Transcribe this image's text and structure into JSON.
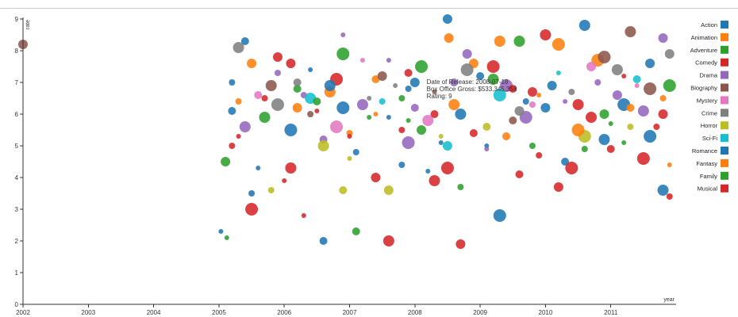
{
  "chart_data": {
    "type": "scatter",
    "title": "",
    "xlabel": "year",
    "ylabel": "rate",
    "xlim": [
      2002,
      2012
    ],
    "ylim": [
      0,
      9
    ],
    "x_ticks": [
      "2002",
      "2003",
      "2004",
      "2005",
      "2006",
      "2007",
      "2008",
      "2009",
      "2010",
      "2011"
    ],
    "y_ticks": [
      "0",
      "1",
      "2",
      "3",
      "4",
      "5",
      "6",
      "7",
      "8",
      "9"
    ],
    "legend_position": "right",
    "tooltip": {
      "lines": [
        "Date of Release: 2008-07-18",
        "Box Office Gross: $533,345,358",
        "Rating: 9"
      ]
    },
    "series": [
      {
        "name": "Action",
        "color": "#1f77b4",
        "points": [
          [
            2005.03,
            2.3
          ],
          [
            2005.5,
            3.5
          ],
          [
            2006.6,
            2.0
          ],
          [
            2008.5,
            9.0
          ],
          [
            2010.6,
            8.8
          ],
          [
            2009.3,
            2.8
          ],
          [
            2008.4,
            5.1
          ],
          [
            2007.1,
            4.8
          ],
          [
            2010.3,
            4.5
          ],
          [
            2011.6,
            7.6
          ],
          [
            2011.8,
            3.6
          ],
          [
            2006.1,
            5.5
          ],
          [
            2007.6,
            5.9
          ],
          [
            2009.7,
            6.4
          ],
          [
            2005.4,
            8.3
          ],
          [
            2008.0,
            7.0
          ],
          [
            2010.9,
            5.2
          ],
          [
            2006.9,
            6.2
          ],
          [
            2009.1,
            5.0
          ],
          [
            2007.9,
            6.8
          ],
          [
            2005.2,
            6.1
          ],
          [
            2010.1,
            6.9
          ],
          [
            2008.7,
            6.0
          ],
          [
            2011.2,
            6.3
          ],
          [
            2006.4,
            7.4
          ]
        ]
      },
      {
        "name": "Animation",
        "color": "#ff7f0e",
        "points": [
          [
            2008.52,
            8.4
          ],
          [
            2009.3,
            8.3
          ],
          [
            2010.2,
            8.2
          ],
          [
            2011.9,
            4.4
          ],
          [
            2005.3,
            6.4
          ],
          [
            2007.4,
            7.1
          ],
          [
            2008.9,
            7.6
          ],
          [
            2006.7,
            6.7
          ],
          [
            2010.8,
            7.7
          ],
          [
            2009.9,
            6.6
          ],
          [
            2007.0,
            5.4
          ],
          [
            2011.3,
            6.2
          ]
        ]
      },
      {
        "name": "Adventure",
        "color": "#2ca02c",
        "points": [
          [
            2005.12,
            2.1
          ],
          [
            2008.7,
            3.7
          ],
          [
            2007.1,
            2.3
          ],
          [
            2005.1,
            4.5
          ],
          [
            2009.6,
            8.3
          ],
          [
            2011.9,
            6.9
          ],
          [
            2007.3,
            5.9
          ],
          [
            2010.6,
            4.9
          ],
          [
            2006.2,
            6.8
          ],
          [
            2008.1,
            5.5
          ],
          [
            2009.2,
            7.1
          ],
          [
            2006.9,
            7.9
          ],
          [
            2011.0,
            5.7
          ],
          [
            2007.8,
            6.5
          ]
        ]
      },
      {
        "name": "Comedy",
        "color": "#d62728",
        "points": [
          [
            2008.7,
            1.9
          ],
          [
            2007.6,
            2.0
          ],
          [
            2005.5,
            3.0
          ],
          [
            2006.3,
            2.8
          ],
          [
            2011.9,
            3.4
          ],
          [
            2009.6,
            4.1
          ],
          [
            2010.2,
            3.7
          ],
          [
            2006.1,
            4.3
          ],
          [
            2011.5,
            4.6
          ],
          [
            2007.0,
            5.3
          ],
          [
            2005.7,
            6.5
          ],
          [
            2008.3,
            6.0
          ],
          [
            2009.8,
            6.7
          ],
          [
            2010.7,
            5.9
          ],
          [
            2006.8,
            7.1
          ],
          [
            2011.2,
            7.2
          ],
          [
            2005.2,
            5.0
          ],
          [
            2008.9,
            5.4
          ],
          [
            2007.4,
            4.0
          ],
          [
            2010.5,
            6.3
          ],
          [
            2009.2,
            7.5
          ],
          [
            2006.5,
            6.1
          ],
          [
            2011.7,
            5.6
          ],
          [
            2007.9,
            7.3
          ],
          [
            2005.9,
            7.8
          ],
          [
            2010.0,
            8.5
          ],
          [
            2008.5,
            4.3
          ],
          [
            2006.0,
            3.9
          ],
          [
            2009.9,
            4.7
          ],
          [
            2011.0,
            4.9
          ]
        ]
      },
      {
        "name": "Drama",
        "color": "#9467bd",
        "points": [
          [
            2006.9,
            8.5
          ],
          [
            2005.9,
            7.3
          ],
          [
            2008.6,
            7.0
          ],
          [
            2011.8,
            8.4
          ],
          [
            2007.2,
            6.3
          ],
          [
            2009.4,
            6.9
          ],
          [
            2010.3,
            6.4
          ],
          [
            2006.3,
            6.6
          ],
          [
            2008.0,
            6.2
          ],
          [
            2011.1,
            6.6
          ],
          [
            2005.4,
            5.6
          ],
          [
            2009.7,
            5.9
          ],
          [
            2007.6,
            7.7
          ],
          [
            2010.8,
            7.0
          ],
          [
            2006.6,
            5.2
          ],
          [
            2008.8,
            7.9
          ],
          [
            2011.5,
            6.1
          ],
          [
            2007.9,
            5.1
          ],
          [
            2009.1,
            4.9
          ]
        ]
      },
      {
        "name": "Biography",
        "color": "#8c564b",
        "points": [
          [
            2002.0,
            8.2
          ],
          [
            2011.3,
            8.6
          ],
          [
            2010.9,
            7.8
          ],
          [
            2008.3,
            6.7
          ],
          [
            2006.4,
            6.0
          ],
          [
            2009.5,
            5.8
          ],
          [
            2007.5,
            7.2
          ],
          [
            2005.8,
            6.9
          ],
          [
            2011.6,
            6.8
          ]
        ]
      },
      {
        "name": "Mystery",
        "color": "#e377c2",
        "points": [
          [
            2007.2,
            7.7
          ],
          [
            2009.8,
            6.3
          ],
          [
            2005.6,
            6.6
          ],
          [
            2010.7,
            7.5
          ],
          [
            2008.2,
            5.8
          ],
          [
            2006.8,
            5.6
          ],
          [
            2011.4,
            6.9
          ]
        ]
      },
      {
        "name": "Crime",
        "color": "#7f7f7f",
        "points": [
          [
            2011.9,
            7.9
          ],
          [
            2005.3,
            8.1
          ],
          [
            2008.8,
            7.4
          ],
          [
            2007.7,
            6.9
          ],
          [
            2010.4,
            6.7
          ],
          [
            2006.2,
            7.0
          ],
          [
            2009.6,
            6.1
          ],
          [
            2011.1,
            7.4
          ],
          [
            2005.9,
            6.3
          ],
          [
            2007.3,
            6.5
          ]
        ]
      },
      {
        "name": "Horror",
        "color": "#bcbd22",
        "points": [
          [
            2007.0,
            4.6
          ],
          [
            2005.8,
            3.6
          ],
          [
            2009.1,
            5.6
          ],
          [
            2007.6,
            3.6
          ],
          [
            2006.6,
            5.0
          ],
          [
            2010.6,
            5.3
          ],
          [
            2008.4,
            5.3
          ],
          [
            2011.3,
            5.6
          ],
          [
            2006.9,
            3.6
          ]
        ]
      },
      {
        "name": "Sci-Fi",
        "color": "#17becf",
        "points": [
          [
            2008.5,
            5.0
          ],
          [
            2006.4,
            6.5
          ],
          [
            2009.3,
            6.6
          ],
          [
            2010.2,
            7.3
          ],
          [
            2007.5,
            6.4
          ],
          [
            2011.4,
            7.1
          ]
        ]
      },
      {
        "name": "Romance",
        "color": "#1f77b4",
        "points": [
          [
            2005.6,
            4.3
          ],
          [
            2007.8,
            4.4
          ],
          [
            2009.0,
            7.2
          ],
          [
            2010.0,
            6.2
          ],
          [
            2006.7,
            6.9
          ],
          [
            2011.6,
            5.3
          ],
          [
            2008.2,
            4.2
          ],
          [
            2005.2,
            7.0
          ]
        ]
      },
      {
        "name": "Fantasy",
        "color": "#ff7f0e",
        "points": [
          [
            2006.2,
            6.2
          ],
          [
            2008.6,
            6.3
          ],
          [
            2010.5,
            5.5
          ],
          [
            2007.4,
            6.0
          ],
          [
            2011.8,
            6.5
          ],
          [
            2009.4,
            5.3
          ],
          [
            2005.5,
            7.6
          ]
        ]
      },
      {
        "name": "Family",
        "color": "#2ca02c",
        "points": [
          [
            2007.9,
            5.8
          ],
          [
            2009.8,
            5.0
          ],
          [
            2006.5,
            6.4
          ],
          [
            2010.9,
            6.0
          ],
          [
            2005.7,
            5.9
          ],
          [
            2008.1,
            7.5
          ],
          [
            2011.2,
            5.1
          ]
        ]
      },
      {
        "name": "Musical",
        "color": "#d62728",
        "points": [
          [
            2006.1,
            7.6
          ],
          [
            2008.3,
            3.9
          ],
          [
            2010.4,
            4.3
          ],
          [
            2005.3,
            5.3
          ],
          [
            2007.8,
            5.5
          ],
          [
            2009.5,
            6.8
          ],
          [
            2011.8,
            6.0
          ]
        ]
      }
    ]
  }
}
